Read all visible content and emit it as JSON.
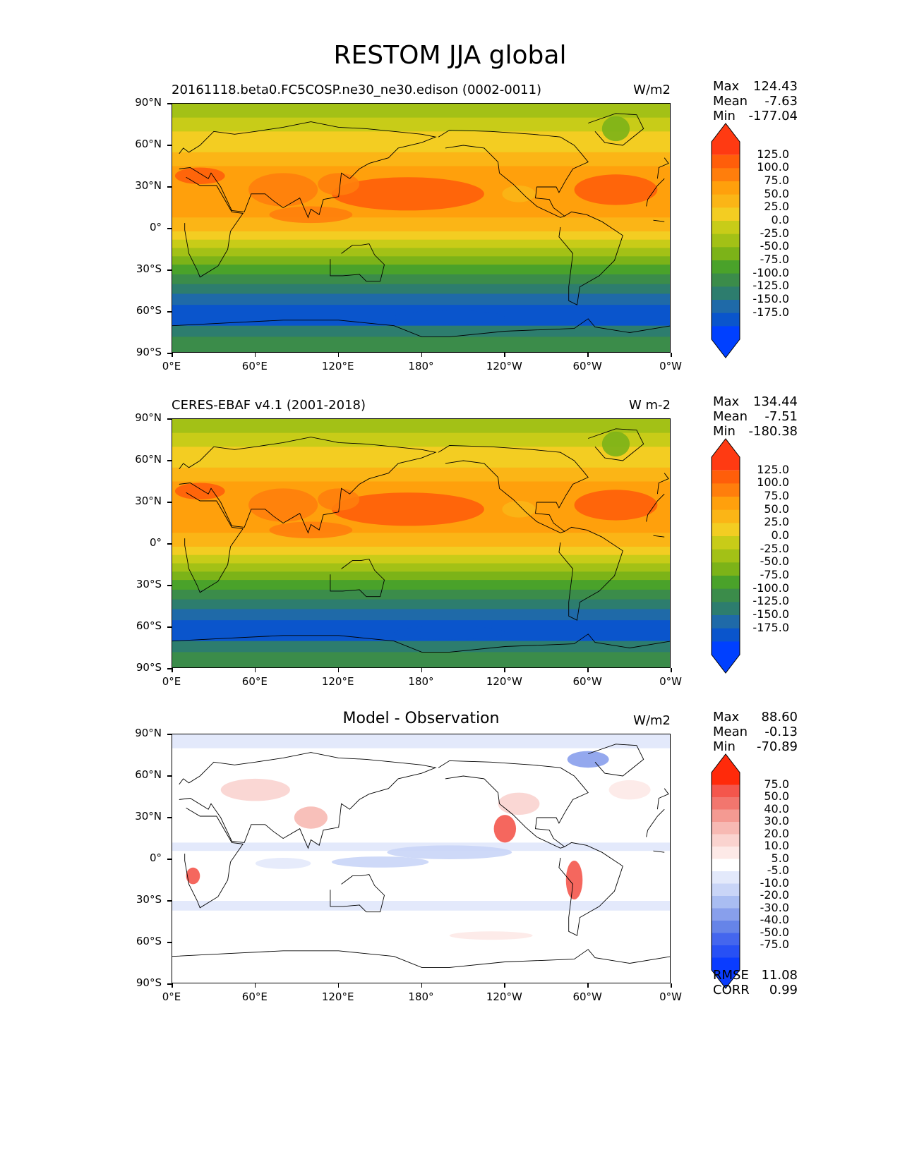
{
  "title": "RESTOM JJA global",
  "panels": [
    {
      "id": "model",
      "subtitle": "20161118.beta0.FC5COSP.ne30_ne30.edison (0002-0011)",
      "units": "W/m2",
      "stats": [
        {
          "label": "Max",
          "value": "124.43"
        },
        {
          "label": "Mean",
          "value": "-7.63"
        },
        {
          "label": "Min",
          "value": "-177.04"
        }
      ],
      "colorbar_labels": [
        "125.0",
        "100.0",
        "75.0",
        "50.0",
        "25.0",
        "0.0",
        "-25.0",
        "-50.0",
        "-75.0",
        "-100.0",
        "-125.0",
        "-150.0",
        "-175.0"
      ],
      "colorbar_colors": [
        "#ff3a12",
        "#ff5e0a",
        "#ff7e0c",
        "#ffa00c",
        "#fbb516",
        "#f3cd22",
        "#c8cc18",
        "#a3c116",
        "#7cb318",
        "#4aa22a",
        "#3b8c4a",
        "#2d7d6e",
        "#1f6aa8",
        "#0a55cc",
        "#0040ff"
      ]
    },
    {
      "id": "obs",
      "subtitle": "CERES-EBAF v4.1 (2001-2018)",
      "units": "W m-2",
      "stats": [
        {
          "label": "Max",
          "value": "134.44"
        },
        {
          "label": "Mean",
          "value": "-7.51"
        },
        {
          "label": "Min",
          "value": "-180.38"
        }
      ],
      "colorbar_labels": [
        "125.0",
        "100.0",
        "75.0",
        "50.0",
        "25.0",
        "0.0",
        "-25.0",
        "-50.0",
        "-75.0",
        "-100.0",
        "-125.0",
        "-150.0",
        "-175.0"
      ],
      "colorbar_colors": [
        "#ff3a12",
        "#ff5e0a",
        "#ff7e0c",
        "#ffa00c",
        "#fbb516",
        "#f3cd22",
        "#c8cc18",
        "#a3c116",
        "#7cb318",
        "#4aa22a",
        "#3b8c4a",
        "#2d7d6e",
        "#1f6aa8",
        "#0a55cc",
        "#0040ff"
      ]
    },
    {
      "id": "diff",
      "subtitle": "Model - Observation",
      "units": "W/m2",
      "stats": [
        {
          "label": "Max",
          "value": "88.60"
        },
        {
          "label": "Mean",
          "value": "-0.13"
        },
        {
          "label": "Min",
          "value": "-70.89"
        }
      ],
      "colorbar_labels": [
        "75.0",
        "50.0",
        "40.0",
        "30.0",
        "20.0",
        "10.0",
        "5.0",
        "-5.0",
        "-10.0",
        "-20.0",
        "-30.0",
        "-40.0",
        "-50.0",
        "-75.0"
      ],
      "colorbar_colors": [
        "#ff2a0a",
        "#f4564c",
        "#f2766e",
        "#f49a92",
        "#f7b9b3",
        "#fad3cf",
        "#fde9e7",
        "#ffffff",
        "#e3e9fb",
        "#c9d5f7",
        "#a9bdf2",
        "#889fec",
        "#6684e8",
        "#4466ee",
        "#2750f5",
        "#0a3cff"
      ],
      "error_stats": [
        {
          "label": "RMSE",
          "value": "11.08"
        },
        {
          "label": "CORR",
          "value": "0.99"
        }
      ]
    }
  ],
  "lat_ticks": [
    "90°N",
    "60°N",
    "30°N",
    "0°",
    "30°S",
    "60°S",
    "90°S"
  ],
  "lon_ticks": [
    "0°E",
    "60°E",
    "120°E",
    "180°",
    "120°W",
    "60°W",
    "0°W"
  ],
  "field_colors": {
    "mean_bands": [
      {
        "lat_from": 90,
        "lat_to": 80,
        "color": "#a3c116"
      },
      {
        "lat_from": 80,
        "lat_to": 70,
        "color": "#c8cc18"
      },
      {
        "lat_from": 70,
        "lat_to": 55,
        "color": "#f3cd22"
      },
      {
        "lat_from": 55,
        "lat_to": 45,
        "color": "#fbb516"
      },
      {
        "lat_from": 45,
        "lat_to": 8,
        "color": "#ffa00c"
      },
      {
        "lat_from": 8,
        "lat_to": -2,
        "color": "#fbb516"
      },
      {
        "lat_from": -2,
        "lat_to": -8,
        "color": "#f3cd22"
      },
      {
        "lat_from": -8,
        "lat_to": -14,
        "color": "#c8cc18"
      },
      {
        "lat_from": -14,
        "lat_to": -20,
        "color": "#a3c116"
      },
      {
        "lat_from": -20,
        "lat_to": -26,
        "color": "#7cb318"
      },
      {
        "lat_from": -26,
        "lat_to": -33,
        "color": "#4aa22a"
      },
      {
        "lat_from": -33,
        "lat_to": -40,
        "color": "#3b8c4a"
      },
      {
        "lat_from": -40,
        "lat_to": -47,
        "color": "#2d7d6e"
      },
      {
        "lat_from": -47,
        "lat_to": -55,
        "color": "#1f6aa8"
      },
      {
        "lat_from": -55,
        "lat_to": -70,
        "color": "#0a55cc"
      },
      {
        "lat_from": -70,
        "lat_to": -78,
        "color": "#2d7d6e"
      },
      {
        "lat_from": -78,
        "lat_to": -90,
        "color": "#3b8c4a"
      }
    ],
    "diff_bands": [
      {
        "lat_from": 90,
        "lat_to": 80,
        "color": "#e3e9fb"
      },
      {
        "lat_from": 80,
        "lat_to": 12,
        "color": "#ffffff"
      },
      {
        "lat_from": 12,
        "lat_to": 6,
        "color": "#e3e9fb"
      },
      {
        "lat_from": 6,
        "lat_to": -22,
        "color": "#ffffff"
      },
      {
        "lat_from": -22,
        "lat_to": -30,
        "color": "#ffffff"
      },
      {
        "lat_from": -30,
        "lat_to": -37,
        "color": "#e3e9fb"
      },
      {
        "lat_from": -37,
        "lat_to": -90,
        "color": "#ffffff"
      }
    ]
  }
}
